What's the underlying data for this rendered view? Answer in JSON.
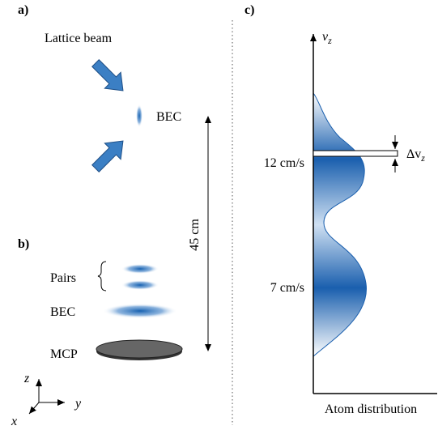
{
  "panel_a": {
    "label": "a)",
    "beam_label": "Lattice beam",
    "bec_label": "BEC",
    "distance_label": "45 cm"
  },
  "panel_b": {
    "label": "b)",
    "pairs_label": "Pairs",
    "bec_label": "BEC",
    "mcp_label": "MCP",
    "axes": {
      "z": "z",
      "y": "y",
      "x": "x"
    }
  },
  "panel_c": {
    "label": "c)",
    "axis_symbol": "v",
    "axis_subscript": "z",
    "tick_high": "12 cm/s",
    "tick_low": "7 cm/s",
    "slice_symbol": "Δv",
    "slice_subscript": "z",
    "x_label": "Atom distribution"
  }
}
